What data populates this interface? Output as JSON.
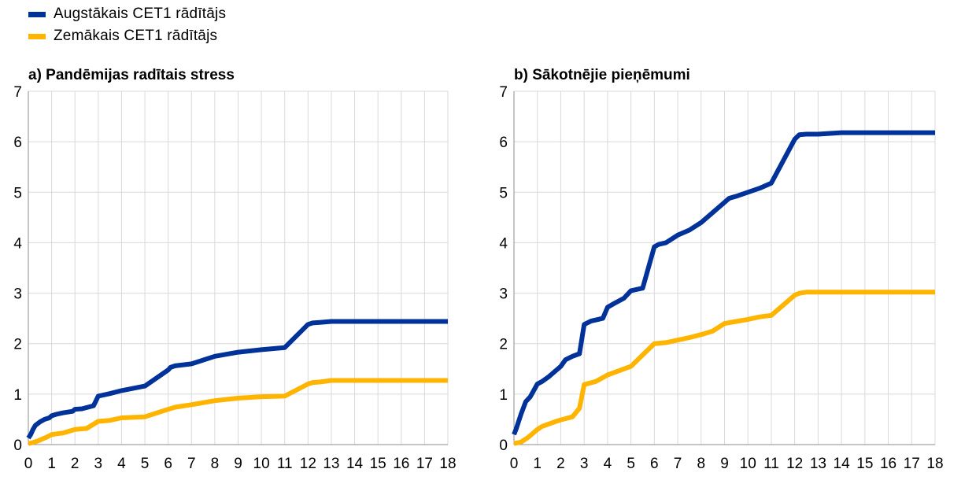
{
  "legend": {
    "items": [
      {
        "label": "Augstākais CET1 rādītājs",
        "color": "#003299"
      },
      {
        "label": "Zemākais CET1 rādītājs",
        "color": "#FFB400"
      }
    ]
  },
  "chart_data": [
    {
      "type": "line",
      "title": "a) Pandēmijas radītais stress",
      "xlim": [
        0,
        18
      ],
      "ylim": [
        0,
        7
      ],
      "xticks": [
        0,
        1,
        2,
        3,
        4,
        5,
        6,
        7,
        8,
        9,
        10,
        11,
        12,
        13,
        14,
        15,
        16,
        17,
        18
      ],
      "yticks": [
        0,
        1,
        2,
        3,
        4,
        5,
        6,
        7
      ],
      "grid": true,
      "series": [
        {
          "name": "Augstākais CET1 rādītājs",
          "color": "#003299",
          "x": [
            0,
            0.1,
            0.2,
            0.3,
            0.5,
            0.7,
            0.9,
            1.0,
            1.2,
            1.5,
            1.9,
            2.0,
            2.3,
            2.8,
            3.0,
            3.5,
            4.0,
            5.0,
            6.0,
            6.1,
            6.3,
            7.0,
            8.0,
            9.0,
            10.0,
            11.0,
            12.0,
            12.2,
            12.5,
            13.0,
            14.0,
            15.0,
            16.0,
            17.0,
            18.0
          ],
          "y": [
            0.13,
            0.2,
            0.3,
            0.38,
            0.45,
            0.5,
            0.53,
            0.57,
            0.6,
            0.63,
            0.66,
            0.7,
            0.71,
            0.77,
            0.96,
            1.01,
            1.07,
            1.16,
            1.48,
            1.53,
            1.56,
            1.6,
            1.75,
            1.83,
            1.88,
            1.92,
            2.38,
            2.41,
            2.42,
            2.44,
            2.44,
            2.44,
            2.44,
            2.44,
            2.44
          ]
        },
        {
          "name": "Zemākais CET1 rādītājs",
          "color": "#FFB400",
          "x": [
            0,
            0.2,
            0.4,
            0.6,
            0.8,
            1.0,
            1.5,
            2.0,
            2.5,
            3.0,
            3.5,
            4.0,
            5.0,
            6.0,
            6.3,
            7.0,
            8.0,
            9.0,
            10.0,
            11.0,
            12.0,
            12.2,
            12.5,
            13.0,
            14.0,
            15.0,
            16.0,
            17.0,
            18.0
          ],
          "y": [
            0.02,
            0.04,
            0.07,
            0.11,
            0.15,
            0.2,
            0.23,
            0.3,
            0.32,
            0.46,
            0.48,
            0.53,
            0.55,
            0.7,
            0.74,
            0.79,
            0.87,
            0.92,
            0.95,
            0.96,
            1.2,
            1.23,
            1.24,
            1.27,
            1.27,
            1.27,
            1.27,
            1.27,
            1.27
          ]
        }
      ]
    },
    {
      "type": "line",
      "title": "b) Sākotnējie pieņēmumi",
      "xlim": [
        0,
        18
      ],
      "ylim": [
        0,
        7
      ],
      "xticks": [
        0,
        1,
        2,
        3,
        4,
        5,
        6,
        7,
        8,
        9,
        10,
        11,
        12,
        13,
        14,
        15,
        16,
        17,
        18
      ],
      "yticks": [
        0,
        1,
        2,
        3,
        4,
        5,
        6,
        7
      ],
      "grid": true,
      "series": [
        {
          "name": "Augstākais CET1 rādītājs",
          "color": "#003299",
          "x": [
            0,
            0.1,
            0.3,
            0.5,
            0.7,
            1.0,
            1.2,
            1.5,
            2.0,
            2.2,
            2.5,
            2.8,
            3.0,
            3.3,
            3.8,
            4.0,
            4.3,
            4.7,
            5.0,
            5.5,
            6.0,
            6.2,
            6.5,
            7.0,
            7.5,
            8.0,
            9.0,
            9.2,
            9.5,
            10.0,
            10.5,
            11.0,
            12.0,
            12.2,
            12.5,
            13.0,
            14.0,
            15.0,
            16.0,
            17.0,
            18.0
          ],
          "y": [
            0.2,
            0.32,
            0.6,
            0.85,
            0.95,
            1.2,
            1.25,
            1.35,
            1.55,
            1.68,
            1.75,
            1.8,
            2.38,
            2.45,
            2.5,
            2.72,
            2.8,
            2.9,
            3.05,
            3.1,
            3.92,
            3.97,
            4.0,
            4.15,
            4.25,
            4.4,
            4.8,
            4.88,
            4.92,
            5.0,
            5.08,
            5.18,
            6.05,
            6.14,
            6.15,
            6.15,
            6.18,
            6.18,
            6.18,
            6.18,
            6.18
          ]
        },
        {
          "name": "Zemākais CET1 rādītājs",
          "color": "#FFB400",
          "x": [
            0,
            0.3,
            0.6,
            1.0,
            1.2,
            1.5,
            1.8,
            2.0,
            2.5,
            2.8,
            3.0,
            3.5,
            4.0,
            5.0,
            6.0,
            6.5,
            7.0,
            7.5,
            8.0,
            8.5,
            9.0,
            9.5,
            10.0,
            10.5,
            11.0,
            12.0,
            12.2,
            12.5,
            13.0,
            14.0,
            15.0,
            16.0,
            17.0,
            18.0
          ],
          "y": [
            0.02,
            0.05,
            0.14,
            0.3,
            0.36,
            0.41,
            0.46,
            0.49,
            0.55,
            0.72,
            1.19,
            1.25,
            1.38,
            1.55,
            2.0,
            2.02,
            2.07,
            2.12,
            2.18,
            2.25,
            2.4,
            2.44,
            2.48,
            2.53,
            2.56,
            2.96,
            3.0,
            3.02,
            3.02,
            3.02,
            3.02,
            3.02,
            3.02,
            3.02
          ]
        }
      ]
    }
  ]
}
